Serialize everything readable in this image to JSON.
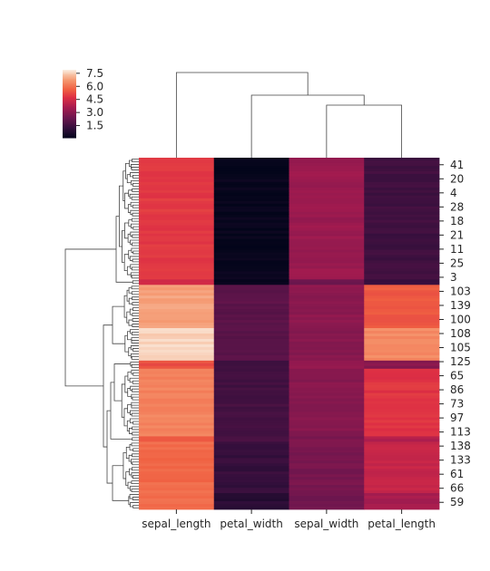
{
  "chart_data": {
    "type": "heatmap",
    "title": "",
    "xlabel": "",
    "ylabel": "",
    "columns": [
      "sepal_length",
      "petal_width",
      "sepal_width",
      "petal_length"
    ],
    "row_tick_labels": [
      "41",
      "20",
      "4",
      "28",
      "18",
      "21",
      "11",
      "25",
      "3",
      "103",
      "139",
      "100",
      "108",
      "105",
      "125",
      "65",
      "86",
      "73",
      "97",
      "113",
      "138",
      "133",
      "61",
      "66",
      "59"
    ],
    "colorbar": {
      "ticks": [
        1.5,
        3.0,
        4.5,
        6.0,
        7.5
      ],
      "tick_labels": [
        "1.5",
        "3.0",
        "4.5",
        "6.0",
        "7.5"
      ],
      "vmin": 0.1,
      "vmax": 7.9,
      "colormap": "rocket"
    },
    "row_dendrogram": true,
    "col_dendrogram": true,
    "row_groups": [
      {
        "rows": 45,
        "values": [
          5.0,
          0.2,
          3.4,
          1.5
        ]
      },
      {
        "rows": 2,
        "values": [
          4.5,
          0.3,
          2.3,
          1.3
        ]
      },
      {
        "rows": 16,
        "values": [
          6.9,
          2.1,
          3.1,
          5.6
        ]
      },
      {
        "rows": 12,
        "values": [
          7.6,
          2.0,
          3.0,
          6.5
        ]
      },
      {
        "rows": 3,
        "values": [
          5.4,
          1.5,
          3.3,
          3.0
        ]
      },
      {
        "rows": 25,
        "values": [
          6.4,
          1.6,
          3.0,
          4.9
        ]
      },
      {
        "rows": 2,
        "values": [
          5.6,
          1.7,
          2.8,
          3.9
        ]
      },
      {
        "rows": 19,
        "values": [
          5.9,
          1.3,
          2.7,
          4.3
        ]
      },
      {
        "rows": 6,
        "values": [
          5.9,
          1.0,
          2.5,
          3.6
        ]
      }
    ]
  }
}
